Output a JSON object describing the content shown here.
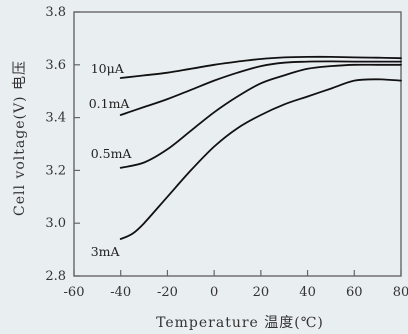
{
  "chart_data": {
    "type": "line",
    "title": "",
    "xlabel": "Temperature 温度(℃)",
    "ylabel": "Cell voltage(V) 电压",
    "xlim": [
      -60,
      80
    ],
    "ylim": [
      2.8,
      3.8
    ],
    "xticks": [
      -60,
      -40,
      -20,
      0,
      20,
      40,
      60,
      80
    ],
    "yticks": [
      2.8,
      3.0,
      3.2,
      3.4,
      3.6,
      3.8
    ],
    "xtick_labels": [
      "-60",
      "-40",
      "-20",
      "0",
      "20",
      "40",
      "60",
      "80"
    ],
    "ytick_labels": [
      "2.8",
      "3.0",
      "3.2",
      "3.4",
      "3.6",
      "3.8"
    ],
    "grid": false,
    "legend": "none",
    "series": [
      {
        "name": "10μA",
        "label": "10μA",
        "x": [
          -40,
          -30,
          -20,
          -10,
          0,
          10,
          20,
          30,
          40,
          50,
          60,
          70,
          80
        ],
        "y": [
          3.55,
          3.56,
          3.57,
          3.585,
          3.6,
          3.612,
          3.622,
          3.628,
          3.63,
          3.63,
          3.628,
          3.627,
          3.625
        ]
      },
      {
        "name": "0.1mA",
        "label": "0.1mA",
        "x": [
          -40,
          -30,
          -20,
          -10,
          0,
          10,
          20,
          30,
          40,
          50,
          60,
          70,
          80
        ],
        "y": [
          3.41,
          3.44,
          3.47,
          3.505,
          3.54,
          3.57,
          3.595,
          3.608,
          3.612,
          3.613,
          3.612,
          3.612,
          3.612
        ]
      },
      {
        "name": "0.5mA",
        "label": "0.5mA",
        "x": [
          -40,
          -30,
          -20,
          -10,
          0,
          10,
          20,
          30,
          40,
          50,
          60,
          70,
          80
        ],
        "y": [
          3.21,
          3.23,
          3.28,
          3.35,
          3.42,
          3.48,
          3.53,
          3.56,
          3.585,
          3.595,
          3.6,
          3.6,
          3.6
        ]
      },
      {
        "name": "3mA",
        "label": "3mA",
        "x": [
          -40,
          -35,
          -30,
          -20,
          -10,
          0,
          10,
          20,
          30,
          40,
          50,
          60,
          70,
          80
        ],
        "y": [
          2.94,
          2.96,
          3.0,
          3.1,
          3.2,
          3.29,
          3.36,
          3.41,
          3.45,
          3.48,
          3.51,
          3.54,
          3.545,
          3.54
        ]
      }
    ]
  }
}
